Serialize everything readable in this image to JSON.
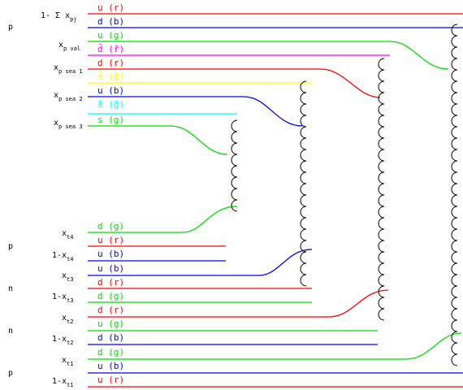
{
  "colors": {
    "r": "#ff0000",
    "b": "#0000ff",
    "g": "#00dd00",
    "rbar": "#ff00ff",
    "gbar": "#ffff00",
    "bbar": "#00ffff",
    "gluon": "#000000"
  },
  "proton_lines": [
    {
      "label": "u (r)",
      "color": "r"
    },
    {
      "label": "d (b)",
      "color": "b"
    },
    {
      "label": "u (g)",
      "color": "g"
    },
    {
      "label": "d̄ (r̄)",
      "color": "rbar"
    },
    {
      "label": "d (r)",
      "color": "r"
    },
    {
      "label": "d̄ (ḡ)",
      "color": "gbar"
    },
    {
      "label": "u (b)",
      "color": "b"
    },
    {
      "label": "s̄ (ḡ)",
      "color": "bbar"
    },
    {
      "label": "s (g)",
      "color": "g"
    }
  ],
  "target_lines": [
    {
      "label": "d (g)",
      "color": "g"
    },
    {
      "label": "u (r)",
      "color": "r"
    },
    {
      "label": "u (b)",
      "color": "b"
    },
    {
      "label": "u (b)",
      "color": "b"
    },
    {
      "label": "d (r)",
      "color": "r"
    },
    {
      "label": "d (g)",
      "color": "g"
    },
    {
      "label": "d (r)",
      "color": "r"
    },
    {
      "label": "u (g)",
      "color": "g"
    },
    {
      "label": "d (b)",
      "color": "b"
    },
    {
      "label": "d (g)",
      "color": "g"
    },
    {
      "label": "u (b)",
      "color": "b"
    },
    {
      "label": "u (r)",
      "color": "r"
    }
  ],
  "momentum_labels": {
    "sum": {
      "pre": "1- Σ x",
      "sub": "pj"
    },
    "val": {
      "pre": "x",
      "sub": "p val"
    },
    "sea1": {
      "pre": "x",
      "sub": "p sea 1"
    },
    "sea2": {
      "pre": "x",
      "sub": "p sea 2"
    },
    "sea3": {
      "pre": "x",
      "sub": "p sea 3"
    },
    "t4": {
      "pre": "x",
      "sub": "t4"
    },
    "t4c": {
      "pre": "1-x",
      "sub": "t4"
    },
    "t3": {
      "pre": "x",
      "sub": "t3"
    },
    "t3c": {
      "pre": "1-x",
      "sub": "t3"
    },
    "t2": {
      "pre": "x",
      "sub": "t2"
    },
    "t2c": {
      "pre": "1-x",
      "sub": "t2"
    },
    "t1": {
      "pre": "x",
      "sub": "t1"
    },
    "t1c": {
      "pre": "1-x",
      "sub": "t1"
    }
  },
  "hadron_tags": [
    "p",
    "p",
    "n",
    "n",
    "p"
  ]
}
